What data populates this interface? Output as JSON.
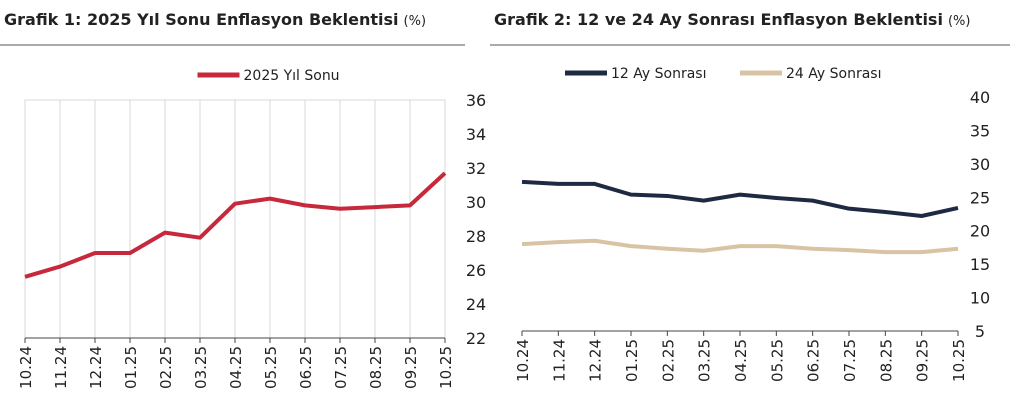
{
  "chart_data": [
    {
      "type": "line",
      "title": "Grafik 1: 2025 Yıl Sonu Enflasyon Beklentisi",
      "unit": "(%)",
      "categories": [
        "10.24",
        "11.24",
        "12.24",
        "01.25",
        "02.25",
        "03.25",
        "04.25",
        "05.25",
        "06.25",
        "07.25",
        "08.25",
        "09.25",
        "10.25"
      ],
      "series": [
        {
          "name": "2025 Yıl Sonu",
          "color": "#c8283c",
          "values": [
            25.6,
            26.2,
            27.0,
            27.0,
            28.2,
            27.9,
            29.9,
            30.2,
            29.8,
            29.6,
            29.7,
            29.8,
            31.7
          ]
        }
      ],
      "ylim": [
        22,
        36
      ],
      "yticks": [
        22,
        24,
        26,
        28,
        30,
        32,
        34,
        36
      ],
      "grid": true
    },
    {
      "type": "line",
      "title": "Grafik 2: 12 ve 24 Ay Sonrası Enflasyon Beklentisi",
      "unit": "(%)",
      "categories": [
        "10.24",
        "11.24",
        "12.24",
        "01.25",
        "02.25",
        "03.25",
        "04.25",
        "05.25",
        "06.25",
        "07.25",
        "08.25",
        "09.25",
        "10.25"
      ],
      "series": [
        {
          "name": "12 Ay Sonrası",
          "color": "#1e2a44",
          "values": [
            27.3,
            27.0,
            27.0,
            25.4,
            25.2,
            24.5,
            25.4,
            24.9,
            24.5,
            23.3,
            22.8,
            22.2,
            23.4
          ]
        },
        {
          "name": "24 Ay Sonrası",
          "color": "#d8c4a4",
          "values": [
            18.0,
            18.3,
            18.5,
            17.7,
            17.3,
            17.0,
            17.7,
            17.7,
            17.3,
            17.1,
            16.8,
            16.8,
            17.3
          ]
        }
      ],
      "ylim": [
        5,
        40
      ],
      "yticks": [
        5,
        10,
        15,
        20,
        25,
        30,
        35,
        40
      ],
      "grid": false
    }
  ]
}
